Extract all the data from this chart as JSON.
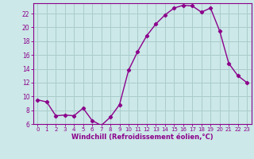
{
  "x": [
    0,
    1,
    2,
    3,
    4,
    5,
    6,
    7,
    8,
    9,
    10,
    11,
    12,
    13,
    14,
    15,
    16,
    17,
    18,
    19,
    20,
    21,
    22,
    23
  ],
  "y": [
    9.5,
    9.2,
    7.2,
    7.3,
    7.2,
    8.3,
    6.5,
    5.8,
    7.0,
    8.8,
    13.8,
    16.5,
    18.8,
    20.5,
    21.8,
    22.8,
    23.2,
    23.1,
    22.2,
    22.8,
    19.5,
    14.8,
    13.0,
    12.0
  ],
  "line_color": "#8b008b",
  "marker": "D",
  "marker_size": 2.2,
  "bg_color": "#cce8e8",
  "grid_color": "#aacccc",
  "xlabel": "Windchill (Refroidissement éolien,°C)",
  "ylim": [
    6,
    23.5
  ],
  "xlim": [
    -0.5,
    23.5
  ],
  "yticks": [
    6,
    8,
    10,
    12,
    14,
    16,
    18,
    20,
    22
  ],
  "xticks": [
    0,
    1,
    2,
    3,
    4,
    5,
    6,
    7,
    8,
    9,
    10,
    11,
    12,
    13,
    14,
    15,
    16,
    17,
    18,
    19,
    20,
    21,
    22,
    23
  ],
  "tick_color": "#8b008b",
  "label_color": "#8b008b"
}
